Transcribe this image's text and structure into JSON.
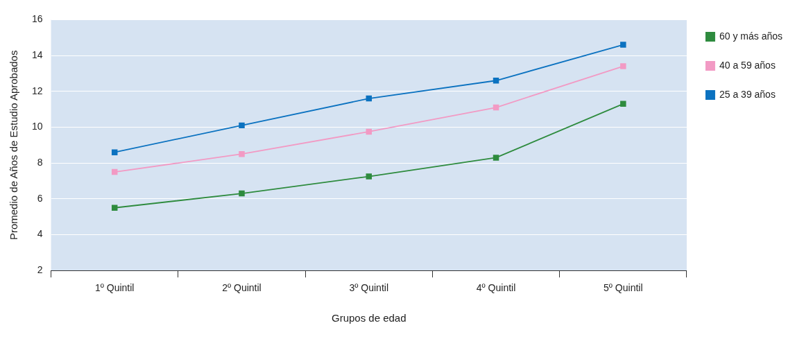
{
  "chart_data": {
    "type": "line",
    "xlabel": "Grupos de edad",
    "ylabel": "Promedio de Años de Estudio Aprobados",
    "categories": [
      "1º Quintil",
      "2º Quintil",
      "3º Quintil",
      "4º Quintil",
      "5º Quintil"
    ],
    "series": [
      {
        "name": "60 y más años",
        "color": "#2e8b3e",
        "values": [
          5.5,
          6.3,
          7.25,
          8.3,
          11.3
        ]
      },
      {
        "name": "40 a 59 años",
        "color": "#f29ac4",
        "values": [
          7.5,
          8.5,
          9.75,
          11.1,
          13.4
        ]
      },
      {
        "name": "25 a 39 años",
        "color": "#0b72c0",
        "values": [
          8.6,
          10.1,
          11.6,
          12.6,
          14.6
        ]
      }
    ],
    "ylim": [
      2,
      16
    ],
    "yticks": [
      2,
      4,
      6,
      8,
      10,
      12,
      14,
      16
    ],
    "grid": "y",
    "legend": "top right",
    "marker": "square",
    "line_style": "solid"
  }
}
